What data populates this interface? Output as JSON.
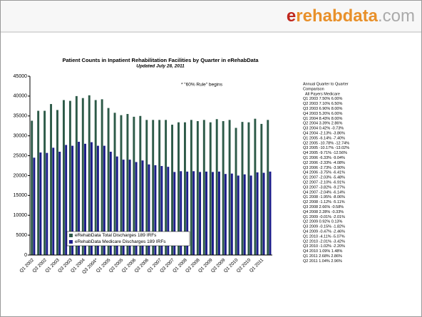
{
  "logo": [
    "e",
    "rehabdata",
    ".com"
  ],
  "chart_data": {
    "type": "bar",
    "title": "Patient Counts in Inpatient Rehabilitation Facilities by Quarter in eRehabData",
    "subtitle": "Updated July 28, 2011",
    "annotation": "* \"60% Rule\" begins",
    "categories": [
      "Q1 2002",
      null,
      "Q3 2002",
      null,
      "Q1 2003",
      null,
      "Q3 2003",
      null,
      "Q1 2004",
      null,
      "Q3 2004*",
      null,
      "Q1 2005",
      null,
      "Q3 2005",
      null,
      "Q1 2006",
      null,
      "Q3 2006",
      null,
      "Q1 2007",
      null,
      "Q3 2007",
      null,
      "Q1 2008",
      null,
      "Q3 2008",
      null,
      "Q1 2009",
      null,
      "Q3 2009",
      null,
      "Q1 2010",
      null,
      "Q3 2010",
      null,
      "Q1 2011",
      null
    ],
    "series": [
      {
        "name": "eRehabData Total Discharges 189 IRFs",
        "color": "#2d5a48",
        "values": [
          33800,
          36300,
          36300,
          38000,
          36500,
          39000,
          38800,
          40000,
          39500,
          40200,
          39000,
          39200,
          37000,
          35800,
          35200,
          35500,
          34800,
          35000,
          34000,
          34000,
          34000,
          34000,
          32800,
          33400,
          33400,
          34000,
          33700,
          34000,
          33400,
          34200,
          33700,
          34000,
          32000,
          33500,
          33400,
          34300,
          33000,
          34000
        ]
      },
      {
        "name": "eRehabData Medicare Discharges 189 IRFs",
        "color": "#1c1c8a",
        "values": [
          24500,
          25800,
          25700,
          27000,
          26000,
          27700,
          27500,
          28500,
          28000,
          28400,
          27500,
          27500,
          26000,
          24800,
          24000,
          24000,
          23400,
          23800,
          22800,
          22600,
          22400,
          22200,
          20900,
          21100,
          21000,
          21100,
          20900,
          21000,
          20900,
          21000,
          20400,
          20500,
          20000,
          20300,
          20000,
          20800,
          20700,
          21000
        ]
      }
    ],
    "ylim": [
      0,
      45000
    ],
    "yticks": [
      0,
      5000,
      10000,
      15000,
      20000,
      25000,
      30000,
      35000,
      40000,
      45000
    ],
    "grid": false,
    "legend": "bottom-left",
    "side_table": {
      "heading": [
        "Annual Quarter to Quarter",
        "Comparison",
        "All Payers Medicare"
      ],
      "rows": [
        "Q1 2003 7.50% 6.00%",
        "Q2 2003 7.10% 6.50%",
        "Q3 2003 6.90% 8.00%",
        "Q4 2003 5.20% 6.00%",
        "Q1 2004 8.43% 8.00%",
        "Q2 2004 3.39% 2.86%",
        "Q3 2004 0.42% -0.73%",
        "Q4 2004 -2.13% -3.86%",
        "Q1 2005 -6.14% -7.40%",
        "Q2 2005 -10.78% -12.74%",
        "Q3 2005 -10.17% -13.02%",
        "Q4 2005 -9.71% -12.56%",
        "Q1 2006 -6.33% -9.04%",
        "Q2 2006 -2.33% -4.08%",
        "Q3 2006 -2.73% -3.90%",
        "Q4 2006 -3.75% -6.41%",
        "Q1 2007 -2.03% -5.48%",
        "Q2 2007 -2.10% -6.91%",
        "Q3 2007 -3.82% -9.27%",
        "Q4 2007 -2.04% -6.14%",
        "Q1 2008 -1.95% -8.06%",
        "Q2 2008 -1.12% -5.11%",
        "Q3 2008 2.66% -0.58%",
        "Q4 2008 2.28% -0.33%",
        "Q1 2009 -0.01% -2.01%",
        "Q2 2009 0.92% 0.13%",
        "Q3 2009 -0.15% -1.82%",
        "Q4 2009 -0.47% -2.46%",
        "Q1 2010 -4.11% -5.07%",
        "Q2 2010 -2.01% -3.42%",
        "Q3 2010 -1.02% -2.20%",
        "Q4 2010 1.09% 1.48%",
        "Q1 2011 2.68% 2.86%",
        "Q2 2011 1.04% 2.96%"
      ]
    }
  }
}
